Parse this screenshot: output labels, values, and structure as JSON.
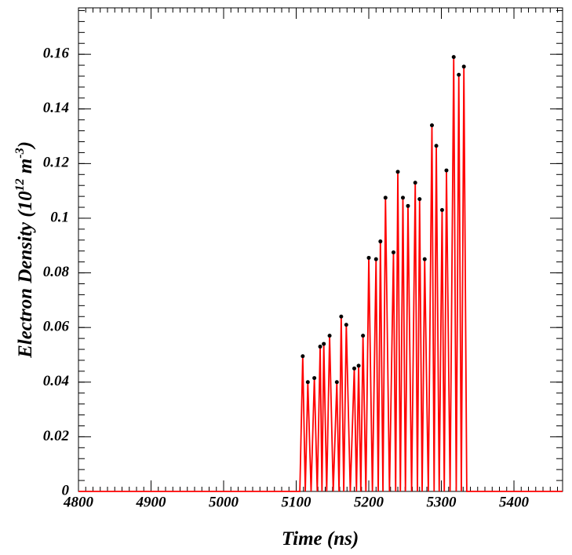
{
  "chart_data": {
    "type": "line",
    "xlabel": "Time (ns)",
    "ylabel": {
      "text": "Electron Density (10",
      "sup1": "12",
      "mid": " m",
      "sup2": "-3",
      "end": ")"
    },
    "xlim": [
      4800,
      5467
    ],
    "ylim": [
      0,
      0.177
    ],
    "xticks": [
      4800,
      4900,
      5000,
      5100,
      5200,
      5300,
      5400
    ],
    "yticks": [
      0,
      0.02,
      0.04,
      0.06,
      0.08,
      0.1,
      0.12,
      0.14,
      0.16
    ],
    "series": [
      {
        "color": "#ff0000",
        "marker_color": "#000000",
        "x": [
          4800,
          5105,
          5109,
          5112.5,
          5116,
          5120.5,
          5125,
          5129,
          5133,
          5135.5,
          5138,
          5142,
          5146,
          5151,
          5156,
          5159,
          5162,
          5165.5,
          5169,
          5174.5,
          5180,
          5183,
          5186,
          5189,
          5192,
          5196,
          5200,
          5205,
          5210,
          5213,
          5216,
          5219.5,
          5223,
          5228.5,
          5234,
          5237,
          5240,
          5243.5,
          5247,
          5250.5,
          5254,
          5259,
          5264,
          5267,
          5270,
          5273.5,
          5277,
          5282,
          5287,
          5290,
          5293,
          5297,
          5301,
          5304,
          5307,
          5312,
          5317,
          5320.5,
          5324,
          5327.5,
          5331,
          5335,
          5467
        ],
        "values": [
          0,
          0,
          0.0495,
          0,
          0.04,
          0,
          0.0415,
          0,
          0.053,
          0,
          0.054,
          0,
          0.057,
          0,
          0.04,
          0,
          0.064,
          0,
          0.061,
          0,
          0.045,
          0,
          0.046,
          0,
          0.057,
          0,
          0.0855,
          0,
          0.085,
          0,
          0.0915,
          0,
          0.1075,
          0,
          0.0875,
          0,
          0.117,
          0,
          0.1075,
          0,
          0.1045,
          0,
          0.113,
          0,
          0.107,
          0,
          0.085,
          0,
          0.134,
          0,
          0.1265,
          0,
          0.103,
          0,
          0.1175,
          0,
          0.159,
          0,
          0.1525,
          0,
          0.1555,
          0,
          0
        ]
      }
    ]
  }
}
